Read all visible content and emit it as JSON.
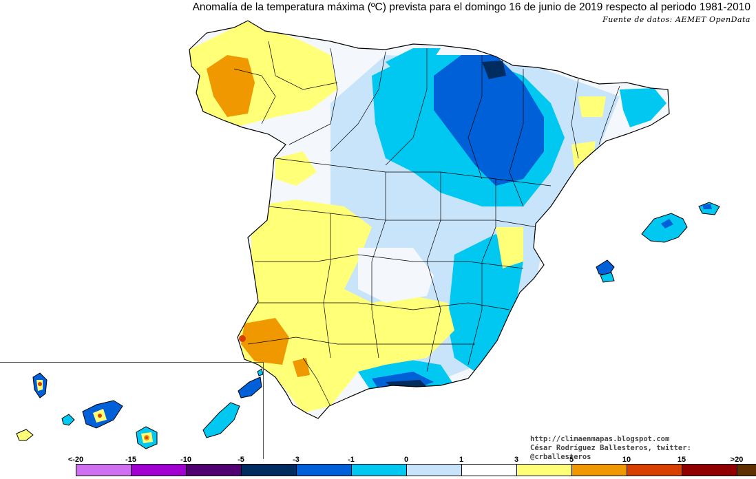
{
  "title": "Anomalía de la temperatura máxima (ºC) prevista para el domingo 16 de junio de 2019 respecto al periodo 1981-2010",
  "source": "Fuente de datos: AEMET OpenData",
  "credits": {
    "line1": "http://climaenmapas.blogspot.com",
    "line2": "César Rodríguez Ballesteros, twitter: @crballesteros"
  },
  "legend": {
    "labels": [
      "<-20",
      "-15",
      "-10",
      "-5",
      "-3",
      "-1",
      "0",
      "1",
      "3",
      "5",
      "10",
      "15",
      ">20"
    ],
    "colors": [
      "#d070f0",
      "#a000d0",
      "#500070",
      "#002c60",
      "#0060d8",
      "#00c8f0",
      "#c8e4fa",
      "#ffffff",
      "#ffff78",
      "#f09800",
      "#d84000",
      "#900000",
      "#603000"
    ]
  },
  "palette": {
    "neg10_5": "#002c60",
    "neg5_3": "#0060d8",
    "neg3_1": "#00c8f0",
    "neg1_0": "#c8e4fa",
    "zero_1": "#ffffff",
    "pos1_3": "#ffff78",
    "pos3_5": "#f09800",
    "pos5_10": "#d84000",
    "border": "#000000"
  }
}
